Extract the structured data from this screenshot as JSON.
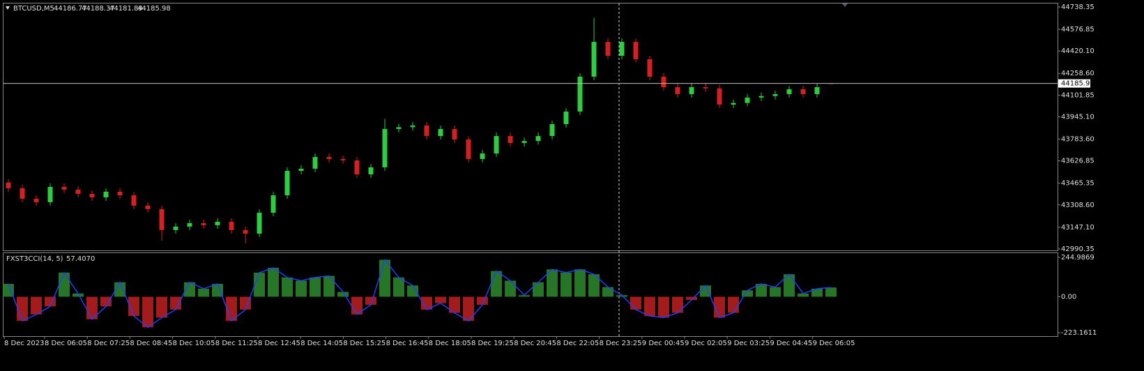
{
  "chart_data": [
    {
      "type": "candlestick",
      "title": "BTCUSD,M5",
      "open": [
        43470,
        43429,
        43353,
        43328,
        43439,
        43419,
        43388,
        43363,
        43404,
        43378,
        43303,
        43278,
        43127,
        43152,
        43177,
        43162,
        43187,
        43127,
        43101,
        43252,
        43378,
        43555,
        43570,
        43655,
        43640,
        43630,
        43529,
        43580,
        43857,
        43870,
        43882,
        43806,
        43857,
        43781,
        43640,
        43680,
        43806,
        43756,
        43770,
        43806,
        43892,
        43983,
        44235,
        44486,
        44386,
        44486,
        44361,
        44235,
        44159,
        44109,
        44159,
        44150,
        44033,
        44045,
        44084,
        44095,
        44109,
        44144,
        44109,
        44186.77
      ],
      "high": [
        43495,
        43454,
        43378,
        43464,
        43464,
        43444,
        43413,
        43429,
        43429,
        43403,
        43328,
        43303,
        43177,
        43202,
        43202,
        43212,
        43212,
        43152,
        43277,
        43403,
        43580,
        43595,
        43680,
        43680,
        43665,
        43655,
        43605,
        43930,
        43895,
        43907,
        43907,
        43882,
        43882,
        43806,
        43705,
        43831,
        43831,
        43795,
        43831,
        43917,
        44008,
        44260,
        44660,
        44511,
        44511,
        44511,
        44386,
        44260,
        44184,
        44184,
        44184,
        44175,
        44070,
        44109,
        44120,
        44134,
        44169,
        44169,
        44184,
        44188.37
      ],
      "low": [
        43404,
        43328,
        43303,
        43303,
        43394,
        43363,
        43338,
        43338,
        43353,
        43278,
        43253,
        43050,
        43102,
        43127,
        43137,
        43137,
        43102,
        43030,
        43076,
        43227,
        43353,
        43530,
        43545,
        43615,
        43605,
        43504,
        43504,
        43555,
        43832,
        43845,
        43781,
        43781,
        43756,
        43615,
        43615,
        43655,
        43731,
        43731,
        43745,
        43781,
        43867,
        43958,
        44210,
        44361,
        44361,
        44336,
        44210,
        44134,
        44084,
        44084,
        44125,
        44008,
        44008,
        44020,
        44059,
        44070,
        44084,
        44084,
        44084,
        44181.89
      ],
      "close": [
        43429,
        43353,
        43328,
        43439,
        43419,
        43388,
        43363,
        43404,
        43378,
        43303,
        43278,
        43127,
        43152,
        43177,
        43162,
        43187,
        43127,
        43101,
        43252,
        43378,
        43555,
        43570,
        43655,
        43640,
        43630,
        43529,
        43580,
        43857,
        43870,
        43882,
        43806,
        43857,
        43781,
        43640,
        43680,
        43806,
        43756,
        43770,
        43806,
        43892,
        43983,
        44235,
        44486,
        44386,
        44486,
        44361,
        44235,
        44159,
        44109,
        44159,
        44150,
        44033,
        44045,
        44084,
        44095,
        44109,
        44144,
        44109,
        44159,
        44185.98
      ],
      "up_color": "#2ecc40",
      "down_color": "#d42020",
      "ylim": [
        42990.35,
        44738.35
      ],
      "yticks": [
        44738.35,
        44576.85,
        {
          "value": 44420.1,
          "label": "44420.10"
        },
        {
          "value": 44258.6,
          "label": "44258.60"
        },
        44101.85,
        {
          "value": 43945.1,
          "label": "43945.10"
        },
        {
          "value": 43783.6,
          "label": "43783.60"
        },
        43626.85,
        43465.35,
        {
          "value": 43308.6,
          "label": "43308.60"
        },
        {
          "value": 43147.1,
          "label": "43147.10"
        },
        42990.35
      ],
      "time_labels": [
        "8 Dec 2023",
        "8 Dec 06:05",
        "8 Dec 07:25",
        "8 Dec 08:45",
        "8 Dec 10:05",
        "8 Dec 11:25",
        "8 Dec 12:45",
        "8 Dec 14:05",
        "8 Dec 15:25",
        "8 Dec 16:45",
        "8 Dec 18:05",
        "8 Dec 19:25",
        "8 Dec 20:45",
        "8 Dec 22:05",
        "8 Dec 23:25",
        "9 Dec 00:45",
        "9 Dec 02:05",
        "9 Dec 03:25",
        "9 Dec 04:45",
        "9 Dec 06:05"
      ]
    },
    {
      "type": "bar",
      "title": "FXST3CCI(14, 5)",
      "values": [
        80,
        -150,
        -110,
        -60,
        150,
        20,
        -140,
        -60,
        90,
        -120,
        -190,
        -130,
        -80,
        90,
        50,
        80,
        -150,
        -80,
        150,
        180,
        120,
        100,
        120,
        130,
        30,
        -110,
        -50,
        230,
        120,
        70,
        -80,
        -40,
        -100,
        -150,
        -50,
        160,
        100,
        10,
        90,
        170,
        150,
        170,
        140,
        60,
        10,
        -80,
        -120,
        -130,
        -100,
        -20,
        70,
        -130,
        -100,
        40,
        80,
        60,
        140,
        20,
        50,
        57.407
      ],
      "value_labels": [
        null,
        null,
        null,
        null,
        null,
        null,
        null,
        null,
        null,
        null,
        null,
        null,
        null,
        null,
        null,
        null,
        null,
        null,
        null,
        null,
        null,
        null,
        null,
        null,
        null,
        null,
        null,
        null,
        null,
        null,
        null,
        null,
        null,
        null,
        null,
        null,
        null,
        null,
        null,
        null,
        null,
        null,
        null,
        null,
        null,
        null,
        null,
        null,
        null,
        null,
        null,
        null,
        null,
        null,
        null,
        null,
        null,
        null,
        null,
        "57.4070"
      ],
      "up_color": "#2e8b2e",
      "down_color": "#c02020",
      "line_color": "#2040ff",
      "ylim": [
        -223.1611,
        244.9869
      ],
      "yticks": [
        244.9869,
        {
          "value": 0,
          "label": "0.00"
        },
        -223.1611
      ]
    }
  ]
}
